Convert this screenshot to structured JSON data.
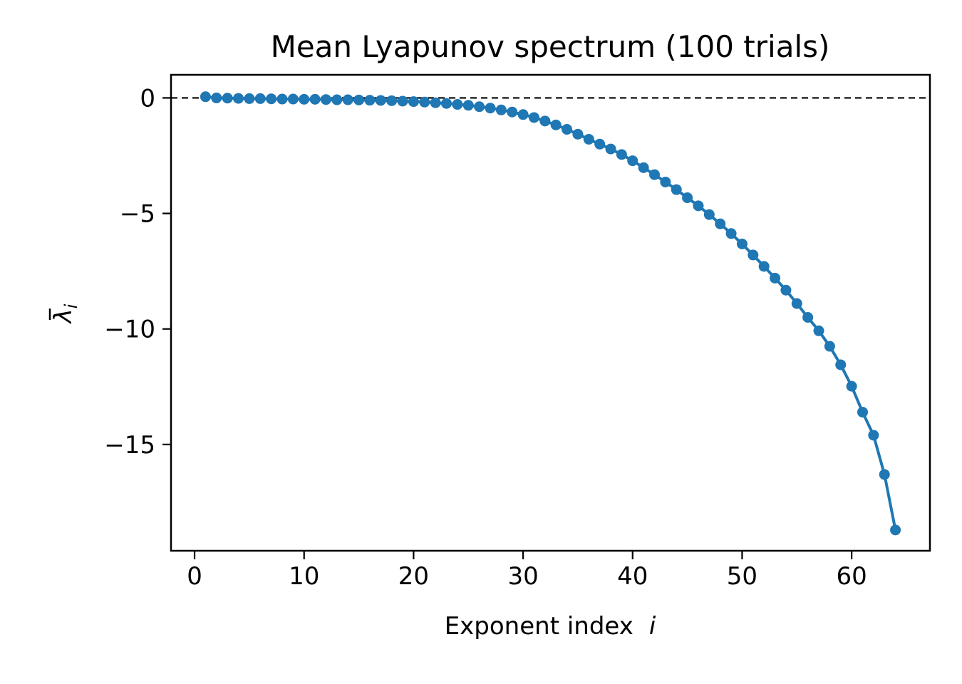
{
  "chart_data": {
    "type": "line",
    "title": "Mean Lyapunov spectrum (100 trials)",
    "xlabel": "Exponent index",
    "xlabel_var": "i",
    "ylabel_symbol": "λ",
    "ylabel_sub": "i",
    "xlim": [
      -2.15,
      67.15
    ],
    "ylim": [
      -19.6,
      1.0
    ],
    "xticks": [
      0,
      10,
      20,
      30,
      40,
      50,
      60
    ],
    "xtick_labels": [
      "0",
      "10",
      "20",
      "30",
      "40",
      "50",
      "60"
    ],
    "yticks": [
      0,
      -5,
      -10,
      -15
    ],
    "ytick_labels": [
      "0",
      "−5",
      "−10",
      "−15"
    ],
    "reference_line": {
      "y": 0,
      "style": "dashed",
      "color": "#000000"
    },
    "grid": false,
    "legend": "none",
    "series": [
      {
        "color": "#1f77b4",
        "marker": "circle",
        "x": [
          1,
          2,
          3,
          4,
          5,
          6,
          7,
          8,
          9,
          10,
          11,
          12,
          13,
          14,
          15,
          16,
          17,
          18,
          19,
          20,
          21,
          22,
          23,
          24,
          25,
          26,
          27,
          28,
          29,
          30,
          31,
          32,
          33,
          34,
          35,
          36,
          37,
          38,
          39,
          40,
          41,
          42,
          43,
          44,
          45,
          46,
          47,
          48,
          49,
          50,
          51,
          52,
          53,
          54,
          55,
          56,
          57,
          58,
          59,
          60,
          61,
          62,
          63,
          64
        ],
        "y": [
          0.05,
          0.0,
          -0.01,
          -0.02,
          -0.03,
          -0.03,
          -0.04,
          -0.05,
          -0.05,
          -0.06,
          -0.06,
          -0.07,
          -0.08,
          -0.08,
          -0.09,
          -0.1,
          -0.11,
          -0.12,
          -0.14,
          -0.16,
          -0.18,
          -0.21,
          -0.24,
          -0.28,
          -0.32,
          -0.38,
          -0.44,
          -0.52,
          -0.61,
          -0.72,
          -0.85,
          -1.0,
          -1.17,
          -1.36,
          -1.57,
          -1.79,
          -2.0,
          -2.21,
          -2.45,
          -2.72,
          -3.02,
          -3.32,
          -3.64,
          -3.97,
          -4.32,
          -4.67,
          -5.05,
          -5.45,
          -5.87,
          -6.32,
          -6.8,
          -7.29,
          -7.8,
          -8.32,
          -8.9,
          -9.5,
          -10.08,
          -10.75,
          -11.55,
          -12.48,
          -13.6,
          -14.6,
          -16.3,
          -18.7
        ]
      }
    ]
  }
}
